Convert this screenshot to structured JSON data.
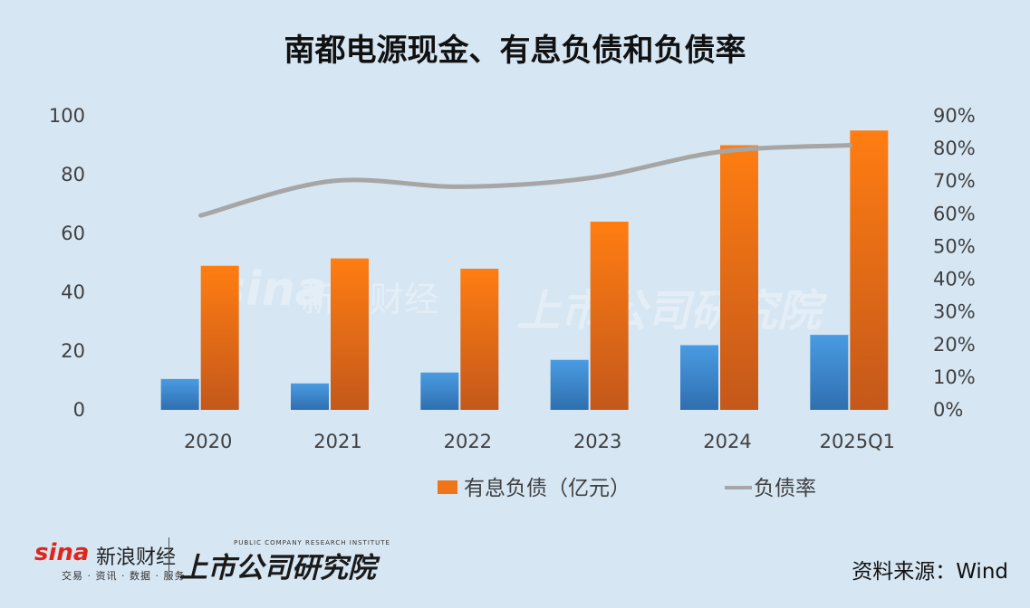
{
  "title": "南都电源现金、有息负债和负债率",
  "source": "资料来源：Wind",
  "brand": {
    "sina_logo": "sina",
    "sina_name": "新浪财经",
    "sina_sub": "交易 · 资讯 · 数据 · 服务",
    "institute_en": "PUBLIC COMPANY RESEARCH INSTITUTE",
    "institute_cn": "上市公司研究院"
  },
  "colors": {
    "background": "#d6e6f3",
    "cash_bar": "#3f8fd6",
    "debt_bar": "#f07518",
    "ratio_line": "#a6a6a6"
  },
  "chart_data": {
    "type": "bar",
    "title": "南都电源现金、有息负债和负债率",
    "categories": [
      "2020",
      "2021",
      "2022",
      "2023",
      "2024",
      "2025Q1"
    ],
    "series": [
      {
        "values": [
          10.5,
          9,
          12.7,
          17,
          22,
          25.5
        ]
      },
      {
        "name": "有息负债（亿元）",
        "values": [
          49,
          51.5,
          48,
          64,
          90,
          95
        ]
      },
      {
        "name": "负债率",
        "type": "line",
        "axis": "right",
        "values": [
          59.5,
          70,
          68.3,
          71,
          79,
          81
        ]
      }
    ],
    "y_left": {
      "range": [
        0,
        100
      ],
      "ticks": [
        "0",
        "20",
        "40",
        "60",
        "80",
        "100"
      ]
    },
    "y_right": {
      "range": [
        0,
        90
      ],
      "ticks": [
        "0%",
        "10%",
        "20%",
        "30%",
        "40%",
        "50%",
        "60%",
        "70%",
        "80%",
        "90%"
      ]
    },
    "grid": false,
    "legend": "bottom"
  }
}
